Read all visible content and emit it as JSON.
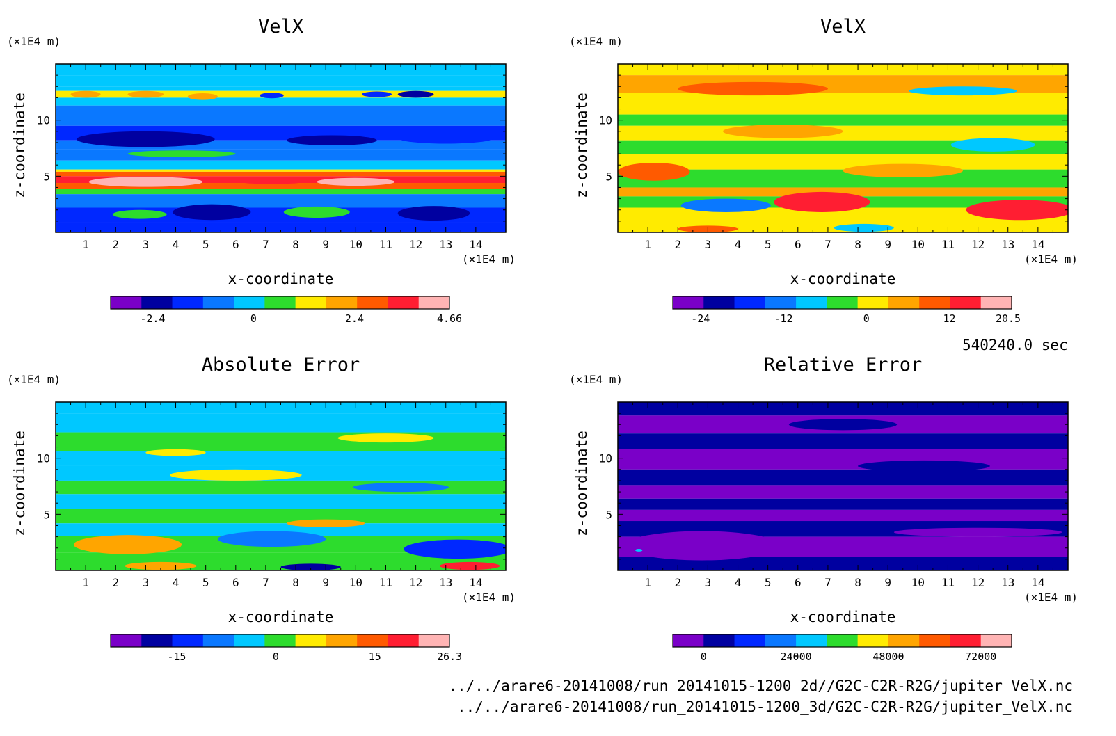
{
  "colors": {
    "ramp": [
      "#7a00c8",
      "#0000a0",
      "#0028ff",
      "#0a78ff",
      "#00c8ff",
      "#2ddc2d",
      "#ffeb00",
      "#ffa500",
      "#ff5a00",
      "#ff1e32",
      "#ffb4b4"
    ]
  },
  "time_label": "540240.0 sec",
  "files": [
    "../../arare6-20141008/run_20141015-1200_2d//G2C-C2R-R2G/jupiter_VelX.nc",
    "../../arare6-20141008/run_20141015-1200_3d/G2C-C2R-R2G/jupiter_VelX.nc"
  ],
  "chart_data": [
    {
      "type": "heatmap",
      "title": "VelX",
      "xlabel": "x-coordinate",
      "ylabel": "z-coordinate",
      "x_unit": "(×1E4 m)",
      "y_unit": "(×1E4 m)",
      "xlim": [
        0,
        15
      ],
      "ylim": [
        0,
        15
      ],
      "x_ticks": [
        "1",
        "2",
        "3",
        "4",
        "5",
        "6",
        "7",
        "8",
        "9",
        "10",
        "11",
        "12",
        "13",
        "14"
      ],
      "y_ticks": [
        "5",
        "10"
      ],
      "colorbar_labels": [
        {
          "v": -2.4,
          "t": "-2.4"
        },
        {
          "v": 0,
          "t": "0"
        },
        {
          "v": 2.4,
          "t": "2.4"
        },
        {
          "v": 4.66,
          "t": "4.66"
        }
      ],
      "clim": [
        -3.4,
        4.66
      ],
      "bands": [
        {
          "z0": 14.0,
          "z1": 15.0,
          "v": 0.2
        },
        {
          "z0": 13.0,
          "z1": 14.0,
          "v": -0.3
        },
        {
          "z0": 12.6,
          "z1": 13.0,
          "v": 0.0
        },
        {
          "z0": 12.0,
          "z1": 12.6,
          "v": 1.2
        },
        {
          "z0": 11.3,
          "z1": 12.0,
          "v": 0.1
        },
        {
          "z0": 10.2,
          "z1": 11.3,
          "v": -0.6
        },
        {
          "z0": 9.5,
          "z1": 10.2,
          "v": -0.9
        },
        {
          "z0": 8.2,
          "z1": 9.5,
          "v": -1.4
        },
        {
          "z0": 7.4,
          "z1": 8.2,
          "v": -1.0
        },
        {
          "z0": 6.4,
          "z1": 7.4,
          "v": -0.7
        },
        {
          "z0": 5.6,
          "z1": 6.4,
          "v": -0.4
        },
        {
          "z0": 5.4,
          "z1": 5.6,
          "v": 1.6
        },
        {
          "z0": 5.0,
          "z1": 5.4,
          "v": 2.6
        },
        {
          "z0": 4.4,
          "z1": 5.0,
          "v": 3.2
        },
        {
          "z0": 3.9,
          "z1": 4.4,
          "v": 2.8
        },
        {
          "z0": 3.4,
          "z1": 3.9,
          "v": 0.6
        },
        {
          "z0": 2.2,
          "z1": 3.4,
          "v": -0.8
        },
        {
          "z0": 0.9,
          "z1": 2.2,
          "v": -1.3
        },
        {
          "z0": 0.0,
          "z1": 0.9,
          "v": -1.6
        }
      ],
      "features": [
        {
          "x": 3.0,
          "z": 4.5,
          "rx": 1.9,
          "rz": 0.45,
          "v": 4.3
        },
        {
          "x": 10.0,
          "z": 4.5,
          "rx": 1.3,
          "rz": 0.35,
          "v": 4.0
        },
        {
          "x": 7.2,
          "z": 4.6,
          "rx": 1.2,
          "rz": 0.3,
          "v": 3.4
        },
        {
          "x": 3.0,
          "z": 8.3,
          "rx": 2.3,
          "rz": 0.7,
          "v": -2.3
        },
        {
          "x": 9.2,
          "z": 8.2,
          "rx": 1.5,
          "rz": 0.45,
          "v": -2.0
        },
        {
          "x": 13.0,
          "z": 8.4,
          "rx": 1.6,
          "rz": 0.5,
          "v": -1.9
        },
        {
          "x": 5.2,
          "z": 1.8,
          "rx": 1.3,
          "rz": 0.7,
          "v": -2.6
        },
        {
          "x": 12.6,
          "z": 1.7,
          "rx": 1.2,
          "rz": 0.65,
          "v": -2.6
        },
        {
          "x": 2.8,
          "z": 1.6,
          "rx": 0.9,
          "rz": 0.4,
          "v": 0.6
        },
        {
          "x": 8.7,
          "z": 1.8,
          "rx": 1.1,
          "rz": 0.5,
          "v": 0.6
        },
        {
          "x": 1.0,
          "z": 12.3,
          "rx": 0.5,
          "rz": 0.3,
          "v": 2.2
        },
        {
          "x": 3.0,
          "z": 12.3,
          "rx": 0.6,
          "rz": 0.3,
          "v": 2.4
        },
        {
          "x": 4.9,
          "z": 12.1,
          "rx": 0.5,
          "rz": 0.3,
          "v": 1.8
        },
        {
          "x": 7.2,
          "z": 12.2,
          "rx": 0.4,
          "rz": 0.25,
          "v": -1.8
        },
        {
          "x": 10.7,
          "z": 12.3,
          "rx": 0.5,
          "rz": 0.25,
          "v": -1.9
        },
        {
          "x": 12.0,
          "z": 12.3,
          "rx": 0.6,
          "rz": 0.3,
          "v": -2.0
        },
        {
          "x": 4.2,
          "z": 7.0,
          "rx": 1.8,
          "rz": 0.3,
          "v": 0.8
        }
      ]
    },
    {
      "type": "heatmap",
      "title": "VelX",
      "xlabel": "x-coordinate",
      "ylabel": "z-coordinate",
      "x_unit": "(×1E4 m)",
      "y_unit": "(×1E4 m)",
      "xlim": [
        0,
        15
      ],
      "ylim": [
        0,
        15
      ],
      "x_ticks": [
        "1",
        "2",
        "3",
        "4",
        "5",
        "6",
        "7",
        "8",
        "9",
        "10",
        "11",
        "12",
        "13",
        "14"
      ],
      "y_ticks": [
        "5",
        "10"
      ],
      "colorbar_labels": [
        {
          "v": -24,
          "t": "-24"
        },
        {
          "v": -12,
          "t": "-12"
        },
        {
          "v": 0,
          "t": "0"
        },
        {
          "v": 12,
          "t": "12"
        },
        {
          "v": 20.5,
          "t": "20.5"
        }
      ],
      "clim": [
        -28,
        21
      ],
      "bands": [
        {
          "z0": 14.0,
          "z1": 15.0,
          "v": 3.0
        },
        {
          "z0": 12.4,
          "z1": 14.0,
          "v": 5.5
        },
        {
          "z0": 10.5,
          "z1": 12.4,
          "v": 0.5
        },
        {
          "z0": 9.5,
          "z1": 10.5,
          "v": -2.0
        },
        {
          "z0": 8.2,
          "z1": 9.5,
          "v": 3.0
        },
        {
          "z0": 7.0,
          "z1": 8.2,
          "v": -1.5
        },
        {
          "z0": 5.6,
          "z1": 7.0,
          "v": 2.5
        },
        {
          "z0": 4.0,
          "z1": 5.6,
          "v": -2.5
        },
        {
          "z0": 3.2,
          "z1": 4.0,
          "v": 4.0
        },
        {
          "z0": 2.2,
          "z1": 3.2,
          "v": -4.0
        },
        {
          "z0": 1.0,
          "z1": 2.2,
          "v": -1.0
        },
        {
          "z0": 0.0,
          "z1": 1.0,
          "v": 2.0
        }
      ],
      "features": [
        {
          "x": 1.2,
          "z": 5.4,
          "rx": 1.2,
          "rz": 0.8,
          "v": 11.0
        },
        {
          "x": 6.8,
          "z": 2.7,
          "rx": 1.6,
          "rz": 0.9,
          "v": 15.0
        },
        {
          "x": 13.4,
          "z": 2.0,
          "rx": 1.8,
          "rz": 0.9,
          "v": 16.0
        },
        {
          "x": 3.6,
          "z": 2.4,
          "rx": 1.5,
          "rz": 0.6,
          "v": -12.0
        },
        {
          "x": 12.5,
          "z": 7.8,
          "rx": 1.4,
          "rz": 0.6,
          "v": -6.0
        },
        {
          "x": 4.5,
          "z": 12.8,
          "rx": 2.5,
          "rz": 0.6,
          "v": 9.5
        },
        {
          "x": 11.5,
          "z": 12.6,
          "rx": 1.8,
          "rz": 0.4,
          "v": -6.0
        },
        {
          "x": 9.5,
          "z": 5.5,
          "rx": 2.0,
          "rz": 0.6,
          "v": 5.5
        },
        {
          "x": 5.5,
          "z": 9.0,
          "rx": 2.0,
          "rz": 0.6,
          "v": 7.5
        },
        {
          "x": 8.2,
          "z": 0.4,
          "rx": 1.0,
          "rz": 0.35,
          "v": -9.0
        },
        {
          "x": 3.0,
          "z": 0.3,
          "rx": 1.0,
          "rz": 0.3,
          "v": 12.0
        }
      ]
    },
    {
      "type": "heatmap",
      "title": "Absolute Error",
      "xlabel": "x-coordinate",
      "ylabel": "z-coordinate",
      "x_unit": "(×1E4 m)",
      "y_unit": "(×1E4 m)",
      "xlim": [
        0,
        15
      ],
      "ylim": [
        0,
        15
      ],
      "x_ticks": [
        "1",
        "2",
        "3",
        "4",
        "5",
        "6",
        "7",
        "8",
        "9",
        "10",
        "11",
        "12",
        "13",
        "14"
      ],
      "y_ticks": [
        "5",
        "10"
      ],
      "colorbar_labels": [
        {
          "v": -15,
          "t": "-15"
        },
        {
          "v": 0,
          "t": "0"
        },
        {
          "v": 15,
          "t": "15"
        },
        {
          "v": 26.3,
          "t": "26.3"
        }
      ],
      "clim": [
        -25,
        26.3
      ],
      "bands": [
        {
          "z0": 14.0,
          "z1": 15.0,
          "v": -2.0
        },
        {
          "z0": 12.3,
          "z1": 14.0,
          "v": -4.0
        },
        {
          "z0": 10.6,
          "z1": 12.3,
          "v": 1.0
        },
        {
          "z0": 9.3,
          "z1": 10.6,
          "v": -3.0
        },
        {
          "z0": 8.0,
          "z1": 9.3,
          "v": -5.5
        },
        {
          "z0": 6.8,
          "z1": 8.0,
          "v": 1.5
        },
        {
          "z0": 5.5,
          "z1": 6.8,
          "v": -2.5
        },
        {
          "z0": 4.2,
          "z1": 5.5,
          "v": 2.5
        },
        {
          "z0": 3.1,
          "z1": 4.2,
          "v": -3.0
        },
        {
          "z0": 1.6,
          "z1": 3.1,
          "v": 2.0
        },
        {
          "z0": 0.0,
          "z1": 1.6,
          "v": 0.0
        }
      ],
      "features": [
        {
          "x": 2.4,
          "z": 2.3,
          "rx": 1.8,
          "rz": 0.85,
          "v": 9.5
        },
        {
          "x": 13.4,
          "z": 1.9,
          "rx": 1.8,
          "rz": 0.85,
          "v": -15.0
        },
        {
          "x": 7.2,
          "z": 2.8,
          "rx": 1.8,
          "rz": 0.7,
          "v": -10.0
        },
        {
          "x": 9.0,
          "z": 4.2,
          "rx": 1.3,
          "rz": 0.35,
          "v": 10.5
        },
        {
          "x": 11.0,
          "z": 11.8,
          "rx": 1.6,
          "rz": 0.4,
          "v": 7.0
        },
        {
          "x": 4.0,
          "z": 10.5,
          "rx": 1.0,
          "rz": 0.3,
          "v": 6.0
        },
        {
          "x": 13.8,
          "z": 0.4,
          "rx": 1.0,
          "rz": 0.35,
          "v": 18.0
        },
        {
          "x": 3.5,
          "z": 0.4,
          "rx": 1.2,
          "rz": 0.35,
          "v": 11.0
        },
        {
          "x": 8.5,
          "z": 0.3,
          "rx": 1.0,
          "rz": 0.3,
          "v": -18.0
        },
        {
          "x": 6.0,
          "z": 8.5,
          "rx": 2.2,
          "rz": 0.5,
          "v": 3.0
        },
        {
          "x": 11.5,
          "z": 7.4,
          "rx": 1.6,
          "rz": 0.4,
          "v": -9.0
        }
      ]
    },
    {
      "type": "heatmap",
      "title": "Relative Error",
      "xlabel": "x-coordinate",
      "ylabel": "z-coordinate",
      "x_unit": "(×1E4 m)",
      "y_unit": "(×1E4 m)",
      "xlim": [
        0,
        15
      ],
      "ylim": [
        0,
        15
      ],
      "x_ticks": [
        "1",
        "2",
        "3",
        "4",
        "5",
        "6",
        "7",
        "8",
        "9",
        "10",
        "11",
        "12",
        "13",
        "14"
      ],
      "y_ticks": [
        "5",
        "10"
      ],
      "colorbar_labels": [
        {
          "v": 0,
          "t": "0"
        },
        {
          "v": 24000,
          "t": "24000"
        },
        {
          "v": 48000,
          "t": "48000"
        },
        {
          "v": 72000,
          "t": "72000"
        }
      ],
      "clim": [
        -8000,
        80000
      ],
      "bands": [
        {
          "z0": 13.8,
          "z1": 15.0,
          "v": 500
        },
        {
          "z0": 12.2,
          "z1": 13.8,
          "v": -3000
        },
        {
          "z0": 10.8,
          "z1": 12.2,
          "v": 500
        },
        {
          "z0": 9.0,
          "z1": 10.8,
          "v": -3000
        },
        {
          "z0": 7.6,
          "z1": 9.0,
          "v": 500
        },
        {
          "z0": 6.4,
          "z1": 7.6,
          "v": -3000
        },
        {
          "z0": 5.4,
          "z1": 6.4,
          "v": 500
        },
        {
          "z0": 4.4,
          "z1": 5.4,
          "v": -3000
        },
        {
          "z0": 3.0,
          "z1": 4.4,
          "v": 500
        },
        {
          "z0": 1.2,
          "z1": 3.0,
          "v": -3000
        },
        {
          "z0": 0.0,
          "z1": 1.2,
          "v": 500
        }
      ],
      "features": [
        {
          "x": 2.8,
          "z": 2.2,
          "rx": 2.6,
          "rz": 1.3,
          "v": -3000
        },
        {
          "x": 12.0,
          "z": 3.4,
          "rx": 2.8,
          "rz": 0.4,
          "v": -3000
        },
        {
          "x": 7.5,
          "z": 13.0,
          "rx": 1.8,
          "rz": 0.5,
          "v": 500
        },
        {
          "x": 10.2,
          "z": 9.3,
          "rx": 2.2,
          "rz": 0.5,
          "v": 500
        },
        {
          "x": 0.7,
          "z": 1.8,
          "rx": 0.12,
          "rz": 0.12,
          "v": 30000
        }
      ]
    }
  ]
}
